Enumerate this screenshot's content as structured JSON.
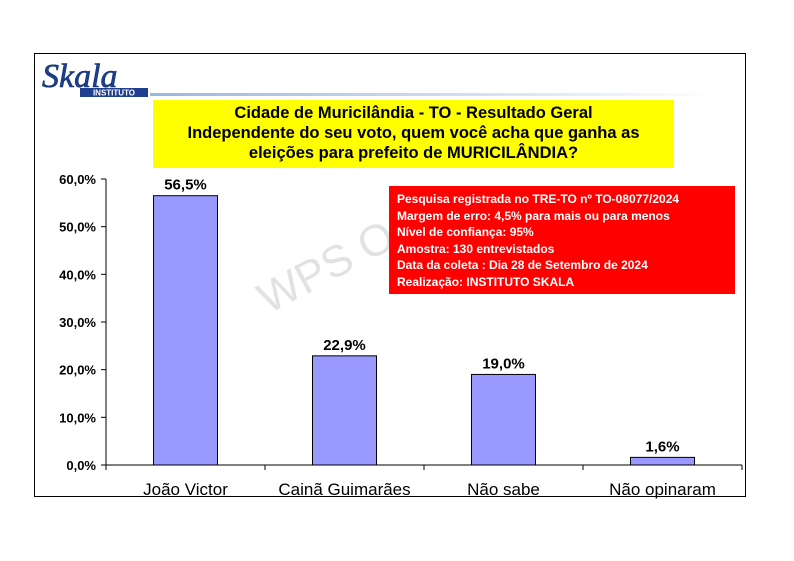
{
  "logo": {
    "name": "Skala",
    "tagline": "INSTITUTO"
  },
  "title_lines": [
    "Cidade de Muricilândia - TO - Resultado Geral",
    "Independente do seu voto, quem você acha que ganha as",
    "eleições para prefeito de MURICILÂNDIA?"
  ],
  "info_lines": [
    "Pesquisa registrada no TRE-TO nº TO-08077/2024",
    "Margem de erro: 4,5% para mais ou para menos",
    "Nível de confiança: 95%",
    "Amostra: 130 entrevistados",
    "Data da coleta : Dia 28 de Setembro de 2024",
    "Realização: INSTITUTO SKALA"
  ],
  "watermark": "WPS O",
  "colors": {
    "bar": "#9999ff",
    "title_bg": "#ffff00",
    "info_bg": "#ff0000"
  },
  "chart_data": {
    "type": "bar",
    "categories": [
      "João Victor",
      "Cainã Guimarães",
      "Não sabe",
      "Não opinaram"
    ],
    "values": [
      56.5,
      22.9,
      19.0,
      1.6
    ],
    "value_labels": [
      "56,5%",
      "22,9%",
      "19,0%",
      "1,6%"
    ],
    "ylim": [
      0,
      60
    ],
    "yticks": [
      0,
      10,
      20,
      30,
      40,
      50,
      60
    ],
    "ytick_labels": [
      "0,0%",
      "10,0%",
      "20,0%",
      "30,0%",
      "40,0%",
      "50,0%",
      "60,0%"
    ],
    "grid": false,
    "legend": "none"
  }
}
